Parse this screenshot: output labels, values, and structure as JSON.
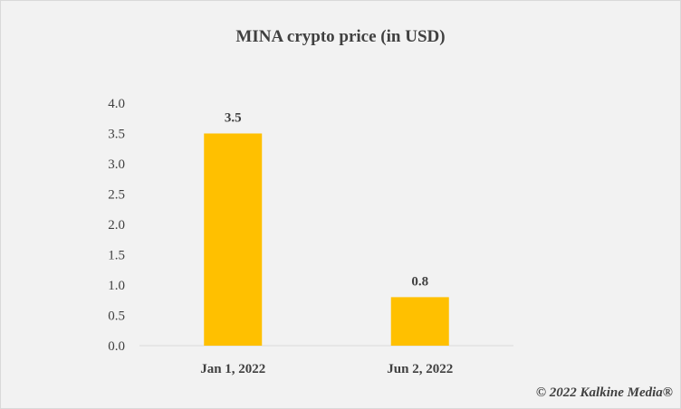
{
  "chart_data": {
    "type": "bar",
    "title": "MINA crypto price (in USD)",
    "categories": [
      "Jan 1, 2022",
      "Jun 2, 2022"
    ],
    "values": [
      3.5,
      0.8
    ],
    "data_labels": [
      "3.5",
      "0.8"
    ],
    "yticks": [
      "0.0",
      "0.5",
      "1.0",
      "1.5",
      "2.0",
      "2.5",
      "3.0",
      "3.5",
      "4.0"
    ],
    "ylim": [
      0,
      4
    ],
    "grid": false,
    "legend": "none",
    "colors": {
      "bar": "#ffc000",
      "background": "#f2f2f2",
      "axis": "#d9d9d9",
      "text": "#404040"
    }
  },
  "footer": {
    "copyright": "© 2022 Kalkine Media®"
  }
}
